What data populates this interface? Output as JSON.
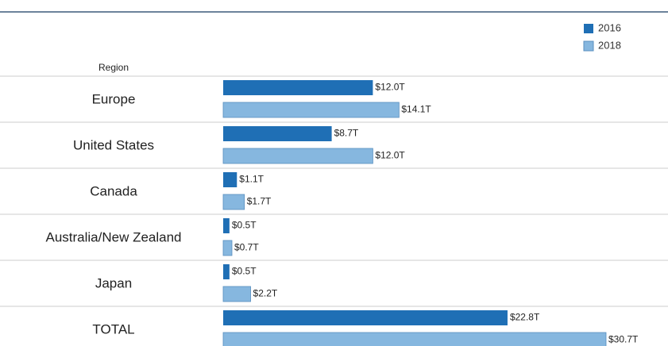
{
  "chart_data": {
    "type": "bar",
    "orientation": "horizontal",
    "y_axis_label": "Region",
    "categories": [
      "Europe",
      "United States",
      "Canada",
      "Australia/New Zealand",
      "Japan",
      "TOTAL"
    ],
    "series": [
      {
        "name": "2016",
        "color": "#1f6fb5",
        "values": [
          12.0,
          8.7,
          1.1,
          0.5,
          0.5,
          22.8
        ],
        "value_labels": [
          "$12.0T",
          "$8.7T",
          "$1.1T",
          "$0.5T",
          "$0.5T",
          "$22.8T"
        ]
      },
      {
        "name": "2018",
        "color": "#86b7df",
        "values": [
          14.1,
          12.0,
          1.7,
          0.7,
          2.2,
          30.7
        ],
        "value_labels": [
          "$14.1T",
          "$12.0T",
          "$1.7T",
          "$0.7T",
          "$2.2T",
          "$30.7T"
        ]
      }
    ],
    "legend": "top-right"
  }
}
